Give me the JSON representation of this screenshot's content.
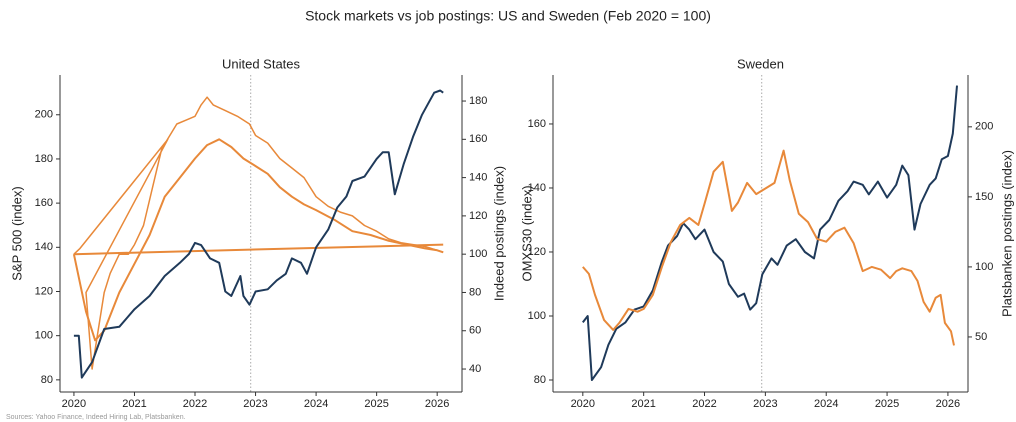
{
  "title": "Stock markets vs job postings: US and Sweden (Feb 2020 = 100)",
  "source": "Sources: Yahoo Finance, Indeed Hiring Lab, Platsbanken.",
  "chart_data": [
    {
      "type": "line",
      "title": "United States",
      "ylabel": "S&P 500 (index)",
      "y2label": "Indeed postings (index)",
      "ylabel_color": "#1f3a5a",
      "y2label_color": "#e8893a",
      "xlim": [
        2019.77,
        2026.41
      ],
      "xticks": [
        2020,
        2021,
        2022,
        2023,
        2024,
        2025,
        2026
      ],
      "ylim": [
        74.5,
        218
      ],
      "yticks": [
        80,
        100,
        120,
        140,
        160,
        180,
        200
      ],
      "y2lim": [
        28,
        193.6
      ],
      "y2ticks": [
        40,
        60,
        80,
        100,
        120,
        140,
        160,
        180
      ],
      "vline": 2022.92,
      "series": [
        {
          "color": "#e8893a",
          "axis": "y2",
          "width": 1.5,
          "x": [
            2020.0,
            2020.1,
            2021.55,
            2020.2,
            2020.3,
            2020.4,
            2020.5,
            2020.6,
            2020.75,
            2020.9,
            2021.0,
            2021.15,
            2021.3,
            2021.45,
            2021.7,
            2021.85,
            2022.0,
            2022.1,
            2022.2,
            2022.3,
            2022.5,
            2022.7,
            2022.9,
            2023.0,
            2023.2,
            2023.4,
            2023.6,
            2023.8,
            2024.0,
            2024.2,
            2024.4,
            2024.6,
            2024.8,
            2025.0,
            2025.2,
            2025.4,
            2025.6,
            2025.8,
            2026.0,
            2026.1
          ],
          "values": [
            100,
            103,
            160,
            80,
            40,
            60,
            80,
            90,
            100,
            100,
            105,
            115,
            135,
            155,
            168,
            170,
            172,
            178,
            182,
            178,
            175,
            172,
            168,
            162,
            158,
            150,
            145,
            140,
            130,
            125,
            122,
            120,
            115,
            112,
            108,
            106,
            105,
            104,
            102,
            101
          ]
        },
        {
          "color": "#e8893a",
          "axis": "y2",
          "width": 2,
          "x": [
            2020.0,
            2020.2,
            2020.35,
            2020.5,
            2020.75,
            2021.0,
            2021.25,
            2021.5,
            2021.75,
            2022.0,
            2022.2,
            2022.4,
            2022.6,
            2022.8,
            2023.0,
            2023.2,
            2023.4,
            2023.6,
            2023.8,
            2024.0,
            2024.3,
            2024.6,
            2024.9,
            2025.2,
            2025.5,
            2025.8,
            2026.0,
            2026.1
          ],
          "values": [
            100,
            70,
            55,
            60,
            80,
            95,
            110,
            130,
            140,
            150,
            157,
            160,
            156,
            150,
            146,
            142,
            135,
            130,
            126,
            123,
            118,
            112,
            110,
            107,
            105,
            103,
            102,
            101
          ]
        },
        {
          "color": "#e8893a",
          "axis": "y2",
          "width": 2,
          "x": [
            2020.0,
            2026.1
          ],
          "values": [
            100,
            105
          ]
        },
        {
          "color": "#1f3a5a",
          "axis": "y",
          "width": 2,
          "x": [
            2020.0,
            2020.08,
            2020.13,
            2020.3,
            2020.5,
            2020.75,
            2021.0,
            2021.25,
            2021.5,
            2021.75,
            2021.9,
            2022.0,
            2022.1,
            2022.25,
            2022.4,
            2022.5,
            2022.6,
            2022.75,
            2022.8,
            2022.9,
            2023.0,
            2023.2,
            2023.35,
            2023.5,
            2023.6,
            2023.75,
            2023.85,
            2024.0,
            2024.2,
            2024.35,
            2024.5,
            2024.6,
            2024.8,
            2025.0,
            2025.1,
            2025.2,
            2025.3,
            2025.45,
            2025.6,
            2025.75,
            2025.85,
            2025.95,
            2026.05,
            2026.1
          ],
          "values": [
            100,
            100,
            81,
            88,
            103,
            104,
            112,
            118,
            127,
            133,
            137,
            142,
            141,
            135,
            133,
            120,
            118,
            127,
            118,
            114,
            120,
            121,
            125,
            128,
            135,
            133,
            128,
            140,
            148,
            158,
            163,
            170,
            172,
            180,
            183,
            183,
            164,
            178,
            190,
            200,
            205,
            210,
            211,
            210
          ]
        }
      ]
    },
    {
      "type": "line",
      "title": "Sweden",
      "ylabel": "OMXS30 (index)",
      "y2label": "Platsbanken postings (index)",
      "ylabel_color": "#1f3a5a",
      "y2label_color": "#e8893a",
      "xlim": [
        2019.51,
        2026.33
      ],
      "xticks": [
        2020,
        2021,
        2022,
        2023,
        2024,
        2025,
        2026
      ],
      "ylim": [
        76.25,
        175.3
      ],
      "yticks": [
        80,
        100,
        120,
        140,
        160
      ],
      "y2lim": [
        10.7,
        237
      ],
      "y2ticks": [
        50,
        100,
        150,
        200
      ],
      "vline": 2022.94,
      "series": [
        {
          "color": "#1f3a5a",
          "axis": "y",
          "width": 2,
          "x": [
            2020.0,
            2020.08,
            2020.15,
            2020.3,
            2020.42,
            2020.55,
            2020.7,
            2020.85,
            2021.0,
            2021.15,
            2021.3,
            2021.4,
            2021.55,
            2021.65,
            2021.75,
            2021.85,
            2022.0,
            2022.15,
            2022.3,
            2022.4,
            2022.55,
            2022.65,
            2022.75,
            2022.85,
            2022.95,
            2023.1,
            2023.2,
            2023.35,
            2023.5,
            2023.65,
            2023.8,
            2023.9,
            2024.05,
            2024.2,
            2024.35,
            2024.45,
            2024.6,
            2024.7,
            2024.85,
            2025.0,
            2025.15,
            2025.25,
            2025.35,
            2025.45,
            2025.55,
            2025.7,
            2025.8,
            2025.9,
            2026.0,
            2026.08,
            2026.15
          ],
          "values": [
            98,
            100,
            80,
            84,
            91,
            96,
            98,
            102,
            103,
            108,
            117,
            122,
            125,
            129,
            127,
            124,
            127,
            120,
            117,
            110,
            106,
            107,
            102,
            104,
            113,
            118,
            116,
            122,
            124,
            120,
            118,
            127,
            130,
            136,
            139,
            142,
            141,
            138,
            142,
            137,
            141,
            147,
            144,
            127,
            135,
            141,
            143,
            149,
            150,
            157,
            172
          ]
        },
        {
          "color": "#e8893a",
          "axis": "y2",
          "width": 2,
          "x": [
            2020.0,
            2020.1,
            2020.2,
            2020.35,
            2020.5,
            2020.6,
            2020.75,
            2020.9,
            2021.0,
            2021.15,
            2021.3,
            2021.45,
            2021.6,
            2021.75,
            2021.9,
            2022.0,
            2022.15,
            2022.3,
            2022.45,
            2022.55,
            2022.7,
            2022.85,
            2023.0,
            2023.15,
            2023.3,
            2023.4,
            2023.55,
            2023.7,
            2023.85,
            2024.0,
            2024.15,
            2024.3,
            2024.45,
            2024.6,
            2024.75,
            2024.9,
            2025.05,
            2025.15,
            2025.25,
            2025.4,
            2025.5,
            2025.6,
            2025.7,
            2025.8,
            2025.88,
            2025.95,
            2026.05,
            2026.1
          ],
          "values": [
            100,
            95,
            80,
            62,
            55,
            60,
            70,
            68,
            70,
            80,
            100,
            118,
            130,
            135,
            130,
            145,
            168,
            175,
            140,
            146,
            160,
            152,
            156,
            160,
            183,
            162,
            138,
            132,
            120,
            118,
            125,
            128,
            117,
            97,
            100,
            98,
            92,
            97,
            99,
            97,
            90,
            75,
            68,
            78,
            80,
            60,
            54,
            44
          ]
        }
      ]
    }
  ]
}
